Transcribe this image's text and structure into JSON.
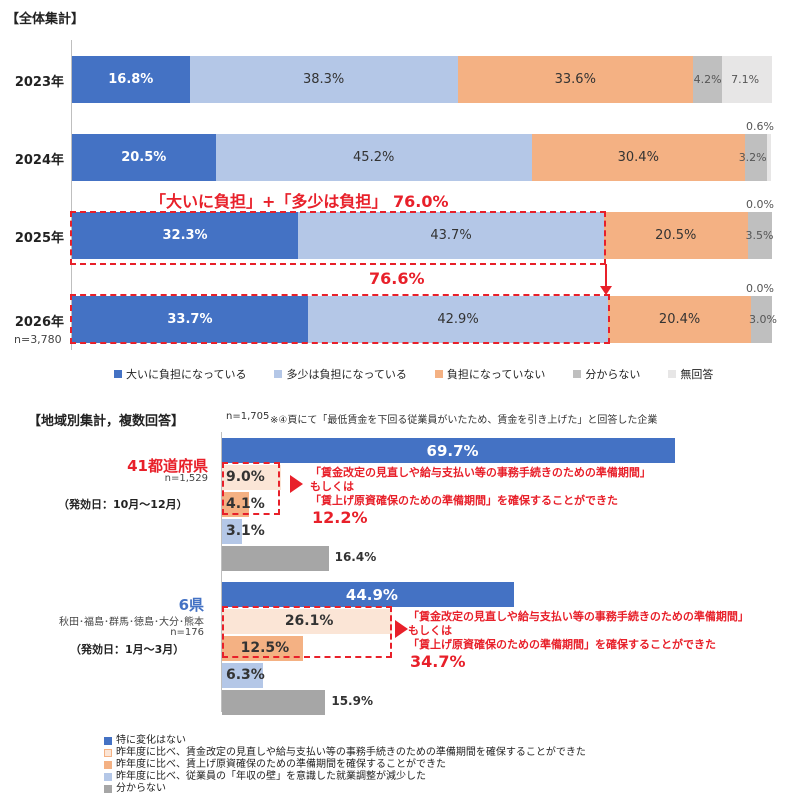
{
  "titles": {
    "overall": "【全体集計】",
    "regional": "【地域別集計，複数回答】",
    "regional_note_n": "n=1,705",
    "regional_note": "※④頁にて「最低賃金を下回る従業員がいたため、賃金を引き上げた」と回答した企業"
  },
  "overall_n": "n=3,780",
  "colors": {
    "heavy": "#4472c4",
    "some": "#b4c7e7",
    "none": "#f4b183",
    "unknown": "#bfbfbf",
    "noanswer": "#e7e6e6",
    "no_change": "#4472c4",
    "admin_prep": "#fbe5d6",
    "cost_prep": "#f4b183",
    "wall_adjust": "#b4c7e7",
    "dk": "#a6a6a6",
    "accent": "#e8202a"
  },
  "callouts": {
    "sum_2025": "「大いに負担」+「多少は負担」 76.0%",
    "sum_2026": "76.6%"
  },
  "chart_data": [
    {
      "type": "bar",
      "orientation": "horizontal-stacked-100",
      "categories": [
        "2023年",
        "2024年",
        "2025年",
        "2026年"
      ],
      "series": [
        {
          "name": "大いに負担になっている",
          "values": [
            16.8,
            20.5,
            32.3,
            33.7
          ]
        },
        {
          "name": "多少は負担になっている",
          "values": [
            38.3,
            45.2,
            43.7,
            42.9
          ]
        },
        {
          "name": "負担になっていない",
          "values": [
            33.6,
            30.4,
            20.5,
            20.4
          ]
        },
        {
          "name": "分からない",
          "values": [
            4.2,
            3.2,
            3.5,
            3.0
          ]
        },
        {
          "name": "無回答",
          "values": [
            7.1,
            0.6,
            0.0,
            0.0
          ]
        }
      ],
      "legend": "bottom"
    },
    {
      "type": "bar",
      "orientation": "horizontal-grouped",
      "groups": [
        {
          "name": "41都道府県",
          "n": "n=1,529",
          "period": "（発効日：10月～12月）",
          "values": [
            69.7,
            9.0,
            4.1,
            3.1,
            16.4
          ],
          "callout_line1": "「賃金改定の見直しや給与支払い等の事務手続きのための準備期間」",
          "callout_line2": "もしくは",
          "callout_line3": "「賃上げ原資確保のための準備期間」を確保することができた",
          "callout_total": "12.2%"
        },
        {
          "name": "6県",
          "sub": "秋田･福島･群馬･徳島･大分･熊本",
          "n": "n=176",
          "period": "（発効日：1月～3月）",
          "values": [
            44.9,
            26.1,
            12.5,
            6.3,
            15.9
          ],
          "callout_line1": "「賃金改定の見直しや給与支払い等の事務手続きのための準備期間」",
          "callout_line2": "もしくは",
          "callout_line3": "「賃上げ原資確保のための準備期間」を確保することができた",
          "callout_total": "34.7%"
        }
      ],
      "series_names": [
        "特に変化はない",
        "昨年度に比べ、賃金改定の見直しや給与支払い等の事務手続きのための準備期間を確保することができた",
        "昨年度に比べ、賃上げ原資確保のための準備期間を確保することができた",
        "昨年度に比べ、従業員の「年収の壁」を意識した就業調整が減少した",
        "分からない"
      ],
      "legend": "bottom-left"
    }
  ]
}
